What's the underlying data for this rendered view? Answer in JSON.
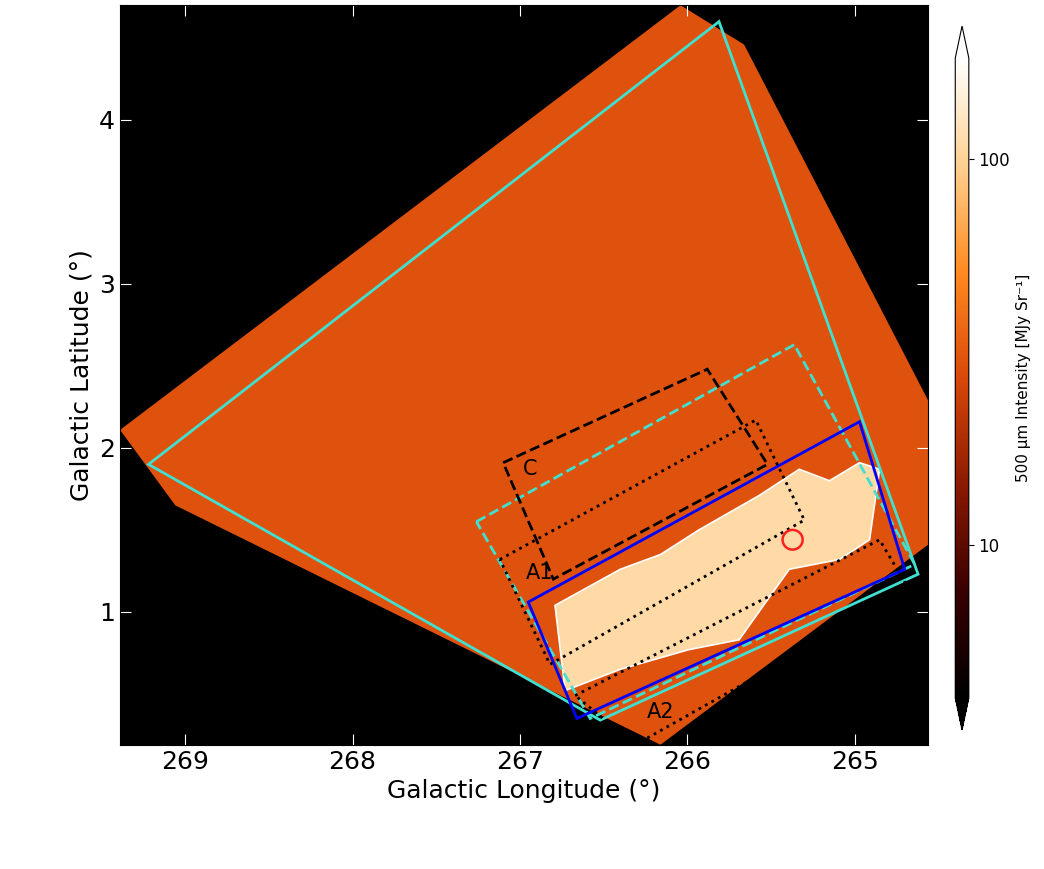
{
  "chart_data": {
    "type": "map",
    "xlabel": "Galactic Longitude (°)",
    "ylabel": "Galactic Latitude (°)",
    "xlim": [
      269.39,
      264.56
    ],
    "ylim": [
      0.19,
      4.7
    ],
    "xticks": [
      269,
      268,
      267,
      266,
      265
    ],
    "yticks": [
      1,
      2,
      3,
      4
    ],
    "colorbar": {
      "label": "500 μm Intensity [MJy Sr⁻¹]",
      "log": true,
      "range": [
        4,
        183
      ],
      "ticks": [
        10,
        100
      ]
    },
    "coverage": {
      "intensity": 30,
      "lon": [
        269.39,
        269.06,
        266.16,
        264.56,
        264.56,
        265.66,
        266.04
      ],
      "lat": [
        2.11,
        1.65,
        0.19,
        1.41,
        2.29,
        4.46,
        4.7
      ]
    },
    "bright_region": {
      "intensity": 110,
      "color": "#ffffff",
      "lon": [
        266.73,
        266.79,
        266.4,
        266.16,
        265.93,
        265.57,
        265.33,
        265.15,
        264.97,
        264.85,
        264.91,
        265.09,
        265.39,
        265.69,
        265.99,
        266.4
      ],
      "lat": [
        0.52,
        1.04,
        1.26,
        1.35,
        1.5,
        1.71,
        1.87,
        1.8,
        1.91,
        1.87,
        1.44,
        1.32,
        1.26,
        0.83,
        0.77,
        0.65
      ]
    },
    "regions": [
      {
        "color": "#40e0d0",
        "line_style": "solid",
        "lon": [
          269.22,
          265.81,
          264.62,
          266.52
        ],
        "lat": [
          1.9,
          4.6,
          1.23,
          0.34
        ]
      },
      {
        "color": "#40e0d0",
        "line_style": "dashed",
        "lon": [
          267.26,
          265.36,
          264.64,
          266.58
        ],
        "lat": [
          1.55,
          2.63,
          1.29,
          0.35
        ]
      },
      {
        "color": "#0000ff",
        "line_style": "solid",
        "lon": [
          266.95,
          264.97,
          264.7,
          266.66
        ],
        "lat": [
          1.06,
          2.16,
          1.26,
          0.35
        ]
      },
      {
        "label": "C",
        "label_lon": 266.94,
        "label_lat": 1.87,
        "color": "#000000",
        "line_style": "dashed",
        "lon": [
          267.1,
          265.88,
          265.52,
          266.8
        ],
        "lat": [
          1.91,
          2.48,
          1.9,
          1.2
        ]
      },
      {
        "label": "A1",
        "label_lon": 266.88,
        "label_lat": 1.24,
        "color": "#000000",
        "line_style": "dotted",
        "lon": [
          267.12,
          265.59,
          265.3,
          266.82
        ],
        "lat": [
          1.32,
          2.17,
          1.56,
          0.68
        ]
      },
      {
        "label": "A2",
        "label_lon": 266.16,
        "label_lat": 0.39,
        "color": "#000000",
        "line_style": "dotted",
        "lon": [
          266.67,
          264.85,
          264.67,
          266.31
        ],
        "lat": [
          0.49,
          1.44,
          1.13,
          0.19
        ]
      }
    ],
    "marker": {
      "lon": 265.37,
      "lat": 1.44,
      "radius": 0.06,
      "color": "#ff2020"
    }
  }
}
